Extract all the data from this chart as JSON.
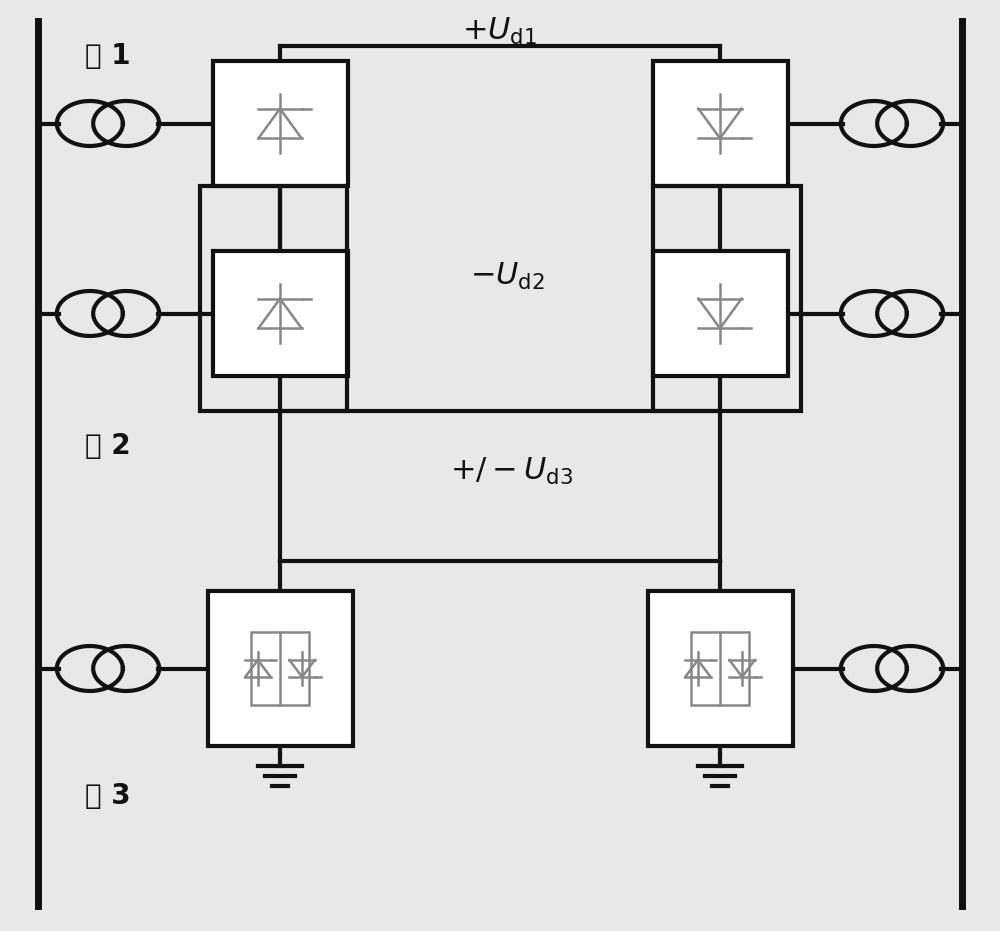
{
  "bg_color": "#e8e8e8",
  "line_color": "#111111",
  "symbol_color": "#888888",
  "lw": 3.0,
  "lw_sym": 1.8,
  "lw_border": 5,
  "label_ji1": "极 1",
  "label_ji2": "极 2",
  "label_ji3": "极 3",
  "font_size_label": 20,
  "font_size_math": 20,
  "fig_w": 10.0,
  "fig_h": 9.31
}
